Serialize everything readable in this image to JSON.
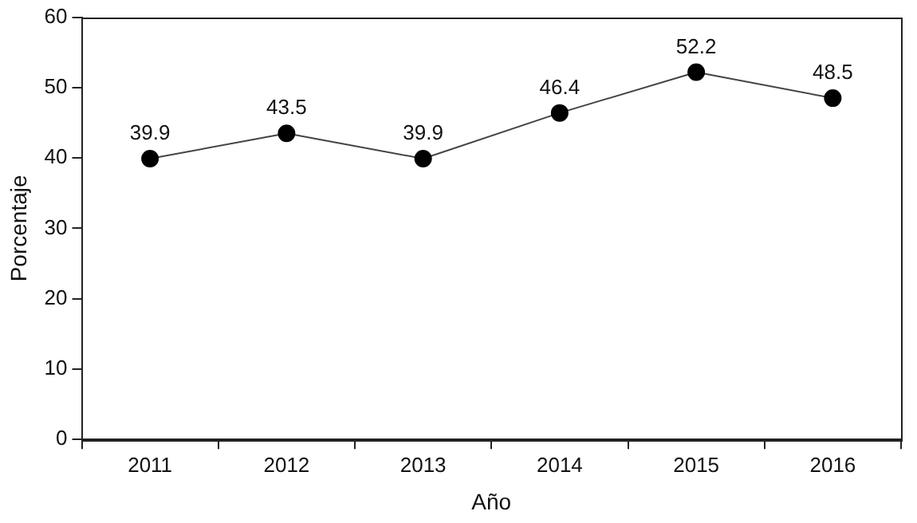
{
  "chart_data": {
    "type": "line",
    "xlabel": "Año",
    "ylabel": "Porcentaje",
    "categories": [
      "2011",
      "2012",
      "2013",
      "2014",
      "2015",
      "2016"
    ],
    "series": [
      {
        "color": "#000000",
        "values": [
          39.9,
          43.5,
          39.9,
          46.4,
          52.2,
          48.5
        ]
      }
    ],
    "ylim": [
      0,
      60
    ],
    "yticks": [
      0,
      10,
      20,
      30,
      40,
      50,
      60
    ],
    "grid": false,
    "legend": false,
    "marker": "circle",
    "line_style": "solid",
    "data_labels": true
  }
}
